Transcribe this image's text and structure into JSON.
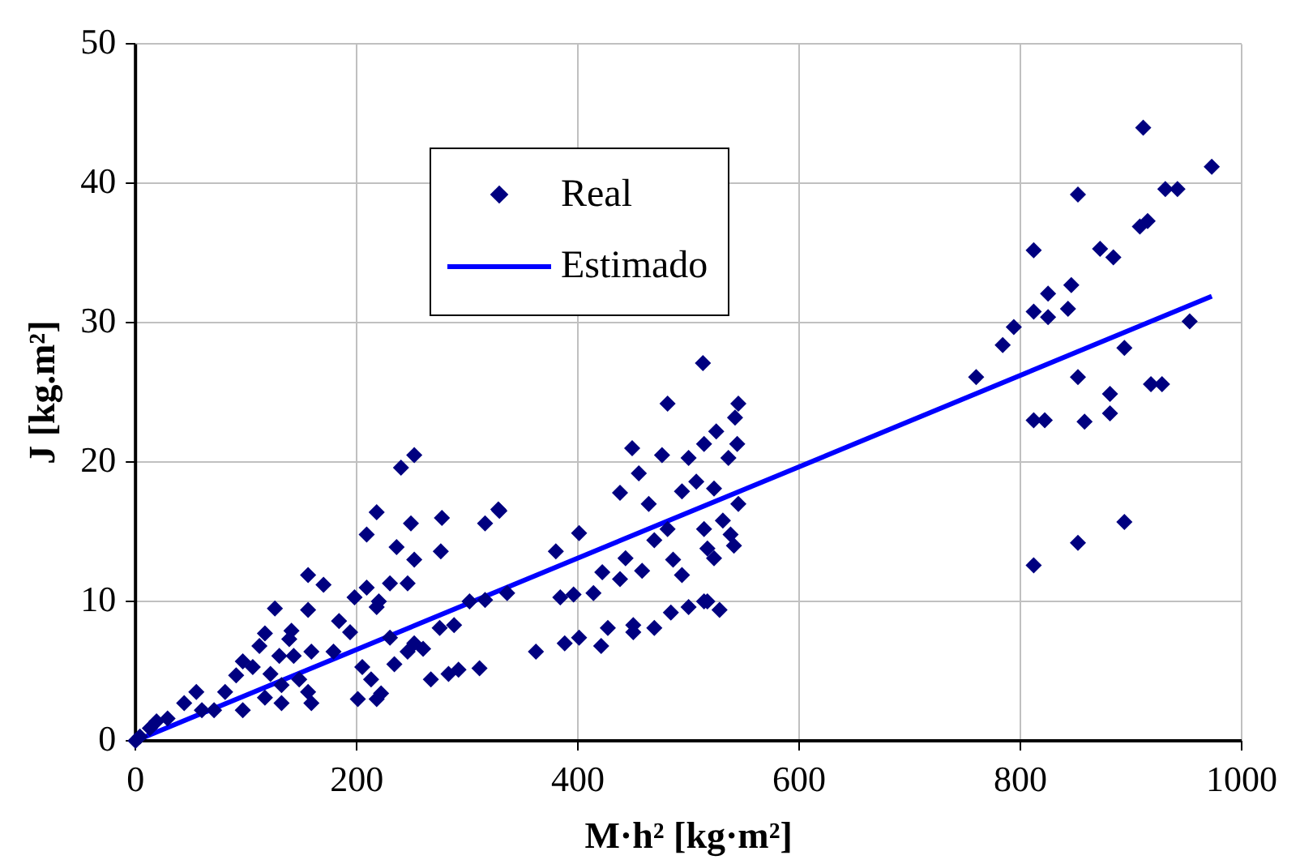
{
  "chart_data": {
    "type": "scatter",
    "xlabel": "M·h² [kg·m²]",
    "ylabel": "J [kg.m²]",
    "xlim": [
      0,
      1000
    ],
    "xticks": [
      0,
      200,
      400,
      600,
      800,
      1000
    ],
    "ylim": [
      0,
      50
    ],
    "yticks": [
      0,
      10,
      20,
      30,
      40,
      50
    ],
    "grid": true,
    "legend": "top left",
    "series": [
      {
        "name": "Real",
        "marker": "diamond",
        "color": "#000080",
        "x": [
          0,
          4,
          13,
          19,
          29,
          44,
          55,
          60,
          71,
          81,
          91,
          97,
          97,
          106,
          112,
          117,
          117,
          122,
          126,
          130,
          132,
          132,
          139,
          141,
          143,
          148,
          156,
          156,
          156,
          159,
          159,
          170,
          179,
          184,
          194,
          198,
          201,
          205,
          209,
          209,
          213,
          218,
          218,
          218,
          220,
          222,
          230,
          230,
          234,
          236,
          240,
          246,
          246,
          249,
          252,
          252,
          252,
          260,
          267,
          275,
          276,
          277,
          283,
          288,
          292,
          302,
          311,
          316,
          316,
          328,
          329,
          336,
          362,
          380,
          384,
          388,
          396,
          401,
          401,
          414,
          421,
          422,
          427,
          438,
          438,
          443,
          449,
          450,
          450,
          455,
          458,
          464,
          469,
          469,
          476,
          481,
          481,
          484,
          486,
          494,
          494,
          500,
          500,
          507,
          513,
          514,
          514,
          514,
          517,
          517,
          523,
          523,
          525,
          528,
          531,
          536,
          538,
          541,
          542,
          544,
          545,
          545,
          760,
          784,
          794,
          812,
          812,
          812,
          812,
          822,
          825,
          825,
          843,
          846,
          852,
          852,
          852,
          858,
          872,
          881,
          881,
          884,
          894,
          894,
          908,
          911,
          915,
          918,
          928,
          931,
          942,
          953,
          973
        ],
        "values": [
          0,
          0.3,
          0.9,
          1.4,
          1.6,
          2.7,
          3.5,
          2.2,
          2.2,
          3.5,
          4.7,
          5.7,
          2.2,
          5.3,
          6.8,
          7.7,
          3.1,
          4.8,
          9.5,
          6.1,
          4.0,
          2.7,
          7.3,
          7.9,
          6.1,
          4.4,
          11.9,
          9.4,
          3.5,
          6.4,
          2.7,
          11.2,
          6.4,
          8.6,
          7.8,
          10.3,
          3.0,
          5.3,
          11.0,
          14.8,
          4.4,
          16.4,
          9.6,
          3.0,
          10.0,
          3.4,
          11.3,
          7.4,
          5.5,
          13.9,
          19.6,
          11.3,
          6.4,
          15.6,
          20.5,
          13.0,
          7.0,
          6.6,
          4.4,
          8.1,
          13.6,
          16.0,
          4.8,
          8.3,
          5.1,
          10.0,
          5.2,
          15.6,
          10.1,
          16.6,
          16.5,
          10.6,
          6.4,
          13.6,
          10.3,
          7.0,
          10.5,
          14.9,
          7.4,
          10.6,
          6.8,
          12.1,
          8.1,
          17.8,
          11.6,
          13.1,
          21.0,
          7.8,
          8.3,
          19.2,
          12.2,
          17.0,
          14.4,
          8.1,
          20.5,
          24.2,
          15.2,
          9.2,
          13.0,
          17.9,
          11.9,
          20.3,
          9.6,
          18.6,
          27.1,
          21.3,
          15.2,
          10.0,
          13.8,
          10.0,
          18.1,
          13.1,
          22.2,
          9.4,
          15.8,
          20.3,
          14.8,
          14.0,
          23.2,
          21.3,
          24.2,
          17.0,
          26.1,
          28.4,
          29.7,
          35.2,
          30.8,
          23.0,
          12.6,
          23.0,
          32.1,
          30.4,
          31.0,
          32.7,
          39.2,
          26.1,
          14.2,
          22.9,
          35.3,
          24.9,
          23.5,
          34.7,
          28.2,
          15.7,
          36.9,
          44.0,
          37.3,
          25.6,
          25.6,
          39.6,
          39.6,
          30.1,
          41.2
        ]
      },
      {
        "name": "Estimado",
        "type": "line",
        "marker": "none",
        "line_style": "solid",
        "color": "#0000ff",
        "x": [
          0,
          973
        ],
        "values": [
          0,
          31.9
        ]
      }
    ]
  }
}
